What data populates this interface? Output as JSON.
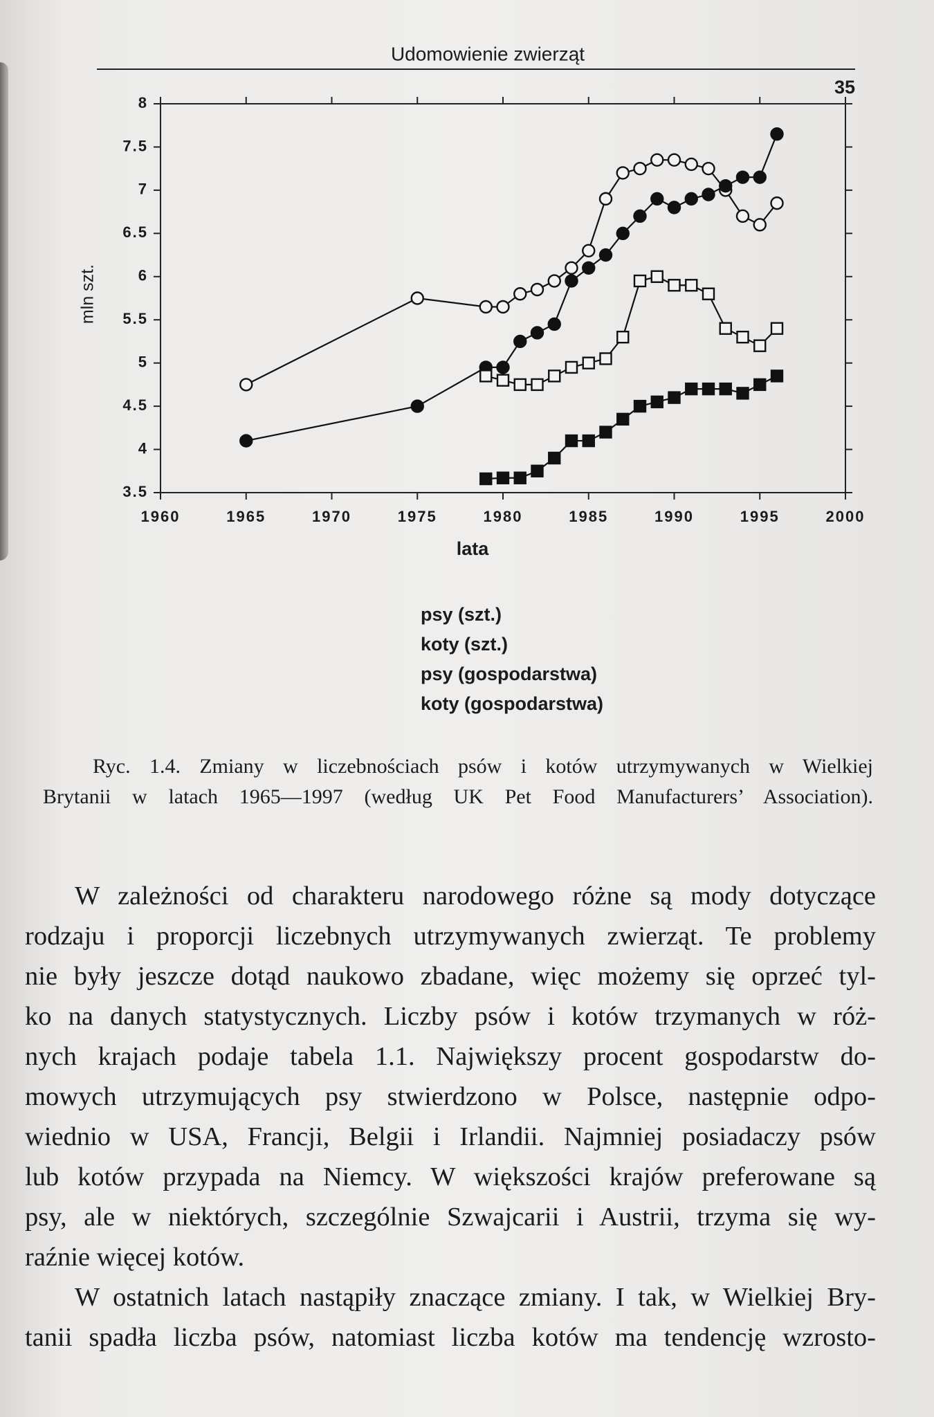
{
  "header": {
    "title": "Udomowienie zwierząt",
    "page_number": "35"
  },
  "chart_data": {
    "type": "line",
    "y_label": "mln szt.",
    "x_label": "lata",
    "xlim": [
      1960,
      2000
    ],
    "xticks": [
      1960,
      1965,
      1970,
      1975,
      1980,
      1985,
      1990,
      1995,
      2000
    ],
    "ylim": [
      3.5,
      8
    ],
    "yticks": [
      3.5,
      4,
      4.5,
      5,
      5.5,
      6,
      6.5,
      7,
      7.5,
      8
    ],
    "grid": false,
    "legend": "bottom",
    "series": [
      {
        "name": "psy (szt.)",
        "color": "#111111",
        "marker": "circle",
        "filled": false,
        "x": [
          1965,
          1975,
          1979,
          1980,
          1981,
          1982,
          1983,
          1984,
          1985,
          1986,
          1987,
          1988,
          1989,
          1990,
          1991,
          1992,
          1993,
          1994,
          1995,
          1996
        ],
        "values": [
          4.75,
          5.75,
          5.65,
          5.65,
          5.8,
          5.85,
          5.95,
          6.1,
          6.3,
          6.9,
          7.2,
          7.25,
          7.35,
          7.35,
          7.3,
          7.25,
          7.0,
          6.7,
          6.6,
          6.85
        ]
      },
      {
        "name": "koty (szt.)",
        "color": "#111111",
        "marker": "circle",
        "filled": true,
        "x": [
          1965,
          1975,
          1979,
          1980,
          1981,
          1982,
          1983,
          1984,
          1985,
          1986,
          1987,
          1988,
          1989,
          1990,
          1991,
          1992,
          1993,
          1994,
          1995,
          1996
        ],
        "values": [
          4.1,
          4.5,
          4.95,
          4.95,
          5.25,
          5.35,
          5.45,
          5.95,
          6.1,
          6.25,
          6.5,
          6.7,
          6.9,
          6.8,
          6.9,
          6.95,
          7.05,
          7.15,
          7.15,
          7.65
        ]
      },
      {
        "name": "psy (gospodarstwa)",
        "color": "#111111",
        "marker": "square",
        "filled": false,
        "x": [
          1979,
          1980,
          1981,
          1982,
          1983,
          1984,
          1985,
          1986,
          1987,
          1988,
          1989,
          1990,
          1991,
          1992,
          1993,
          1994,
          1995,
          1996
        ],
        "values": [
          4.85,
          4.8,
          4.75,
          4.75,
          4.85,
          4.95,
          5.0,
          5.05,
          5.3,
          5.95,
          6.0,
          5.9,
          5.9,
          5.8,
          5.4,
          5.3,
          5.2,
          5.4
        ]
      },
      {
        "name": "koty (gospodarstwa)",
        "color": "#111111",
        "marker": "square",
        "filled": true,
        "x": [
          1979,
          1980,
          1981,
          1982,
          1983,
          1984,
          1985,
          1986,
          1987,
          1988,
          1989,
          1990,
          1991,
          1992,
          1993,
          1994,
          1995,
          1996
        ],
        "values": [
          3.66,
          3.67,
          3.67,
          3.75,
          3.9,
          4.1,
          4.1,
          4.2,
          4.35,
          4.5,
          4.55,
          4.6,
          4.7,
          4.7,
          4.7,
          4.65,
          4.75,
          4.85
        ]
      }
    ]
  },
  "caption": {
    "lines": [
      "Ryc. 1.4. Zmiany w liczebnościach psów i kotów utrzymywanych w Wielkiej",
      "Brytanii w latach 1965—1997 (według UK Pet Food Manufacturers’ Association)."
    ]
  },
  "body": {
    "paragraphs": [
      [
        "W zależności od charakteru narodowego różne są mody dotyczące",
        "rodzaju i proporcji liczebnych utrzymywanych zwierząt. Te problemy",
        "nie były jeszcze dotąd naukowo zbadane, więc możemy się oprzeć tyl-",
        "ko na danych statystycznych. Liczby psów i kotów trzymanych w róż-",
        "nych krajach podaje tabela 1.1. Największy procent gospodarstw do-",
        "mowych utrzymujących psy stwierdzono w Polsce, następnie odpo-",
        "wiednio w USA, Francji, Belgii i Irlandii. Najmniej posiadaczy psów",
        "lub kotów przypada na Niemcy. W większości krajów preferowane są",
        "psy, ale w niektórych, szczególnie Szwajcarii i Austrii, trzyma się wy-",
        "raźnie więcej kotów."
      ],
      [
        "W ostatnich latach nastąpiły znaczące zmiany. I tak, w Wielkiej Bry-",
        "tanii spadła liczba psów, natomiast liczba kotów ma tendencję wzrosto-"
      ]
    ]
  }
}
